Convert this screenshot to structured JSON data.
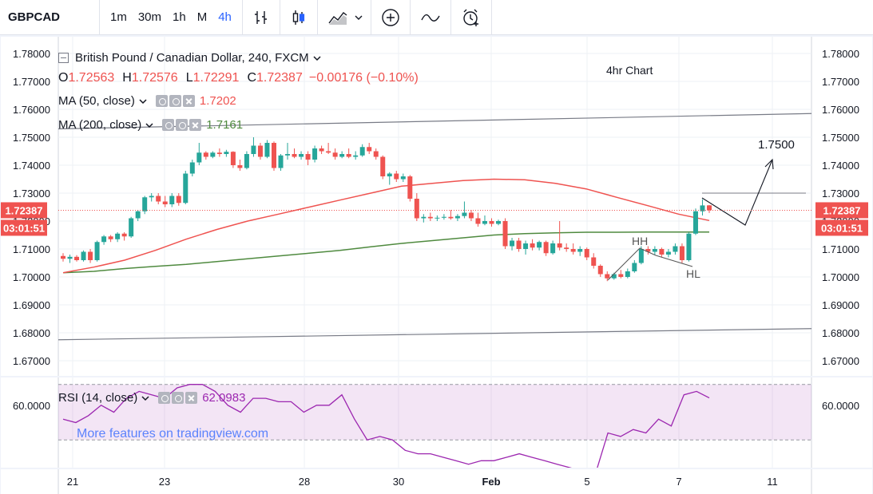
{
  "toolbar": {
    "symbol": "GBPCAD",
    "timeframes": [
      {
        "label": "1m",
        "active": false
      },
      {
        "label": "30m",
        "active": false
      },
      {
        "label": "1h",
        "active": false
      },
      {
        "label": "M",
        "active": false
      },
      {
        "label": "4h",
        "active": true
      }
    ]
  },
  "legend": {
    "title": "British Pound / Canadian Dollar, 240, FXCM",
    "ohlc": {
      "o_label": "O",
      "o": "1.72563",
      "h_label": "H",
      "h": "1.72576",
      "l_label": "L",
      "l": "1.72291",
      "c_label": "C",
      "c": "1.72387",
      "change": "−0.00176 (−0.10%)"
    },
    "ma50": {
      "label": "MA (50, close)",
      "value": "1.7202",
      "color": "#ef5350"
    },
    "ma200": {
      "label": "MA (200, close)",
      "value": "1.7161",
      "color": "#4f8a3f"
    },
    "rsi": {
      "label": "RSI (14, close)",
      "value": "62.0983",
      "color": "#9c27b0"
    }
  },
  "annotations": {
    "chart_note": "4hr Chart",
    "target": "1.7500",
    "hh": "HH",
    "hl": "HL",
    "watermark": "More features on tradingview.com"
  },
  "price_axis": {
    "ticks": [
      "1.78000",
      "1.77000",
      "1.76000",
      "1.75000",
      "1.74000",
      "1.73000",
      "1.72000",
      "1.71000",
      "1.70000",
      "1.69000",
      "1.68000",
      "1.67000"
    ],
    "last_price": "1.72387",
    "countdown": "03:01:51"
  },
  "rsi_axis": {
    "ticks": [
      "60.0000"
    ]
  },
  "time_axis": {
    "ticks": [
      "21",
      "23",
      "28",
      "30",
      "Feb",
      "5",
      "7",
      "11"
    ]
  },
  "chart_data": {
    "type": "candlestick",
    "symbol": "GBPCAD",
    "interval": "240",
    "ylim": [
      1.665,
      1.783
    ],
    "up_color": "#26a69a",
    "down_color": "#ef5350",
    "candles": [
      [
        1.7075,
        1.7085,
        1.7055,
        1.7065
      ],
      [
        1.7065,
        1.708,
        1.705,
        1.7072
      ],
      [
        1.7072,
        1.7078,
        1.7055,
        1.706
      ],
      [
        1.706,
        1.7095,
        1.7055,
        1.709
      ],
      [
        1.709,
        1.71,
        1.705,
        1.706
      ],
      [
        1.706,
        1.713,
        1.7055,
        1.7125
      ],
      [
        1.7125,
        1.715,
        1.7115,
        1.7145
      ],
      [
        1.7145,
        1.715,
        1.7125,
        1.7135
      ],
      [
        1.7135,
        1.716,
        1.7125,
        1.7155
      ],
      [
        1.7155,
        1.716,
        1.713,
        1.7145
      ],
      [
        1.7145,
        1.7215,
        1.714,
        1.721
      ],
      [
        1.721,
        1.724,
        1.72,
        1.7235
      ],
      [
        1.7235,
        1.729,
        1.7225,
        1.7285
      ],
      [
        1.7285,
        1.73,
        1.727,
        1.729
      ],
      [
        1.729,
        1.73,
        1.726,
        1.727
      ],
      [
        1.727,
        1.729,
        1.725,
        1.726
      ],
      [
        1.726,
        1.73,
        1.725,
        1.729
      ],
      [
        1.729,
        1.73,
        1.7255,
        1.7265
      ],
      [
        1.7265,
        1.738,
        1.726,
        1.737
      ],
      [
        1.737,
        1.742,
        1.736,
        1.741
      ],
      [
        1.741,
        1.748,
        1.74,
        1.7445
      ],
      [
        1.7445,
        1.745,
        1.742,
        1.743
      ],
      [
        1.743,
        1.745,
        1.7425,
        1.7445
      ],
      [
        1.7445,
        1.746,
        1.743,
        1.744
      ],
      [
        1.744,
        1.7455,
        1.743,
        1.7448
      ],
      [
        1.7448,
        1.745,
        1.739,
        1.74
      ],
      [
        1.74,
        1.742,
        1.738,
        1.739
      ],
      [
        1.739,
        1.745,
        1.7385,
        1.744
      ],
      [
        1.744,
        1.75,
        1.743,
        1.747
      ],
      [
        1.747,
        1.748,
        1.742,
        1.743
      ],
      [
        1.743,
        1.749,
        1.7425,
        1.748
      ],
      [
        1.748,
        1.7485,
        1.738,
        1.739
      ],
      [
        1.739,
        1.744,
        1.738,
        1.7435
      ],
      [
        1.7435,
        1.748,
        1.742,
        1.744
      ],
      [
        1.744,
        1.746,
        1.7425,
        1.743
      ],
      [
        1.743,
        1.745,
        1.742,
        1.744
      ],
      [
        1.744,
        1.745,
        1.74,
        1.742
      ],
      [
        1.742,
        1.747,
        1.741,
        1.746
      ],
      [
        1.746,
        1.747,
        1.744,
        1.745
      ],
      [
        1.745,
        1.748,
        1.744,
        1.7445
      ],
      [
        1.7445,
        1.746,
        1.742,
        1.743
      ],
      [
        1.743,
        1.745,
        1.7425,
        1.744
      ],
      [
        1.744,
        1.746,
        1.7425,
        1.743
      ],
      [
        1.743,
        1.745,
        1.742,
        1.7435
      ],
      [
        1.7435,
        1.7475,
        1.743,
        1.7465
      ],
      [
        1.7465,
        1.748,
        1.744,
        1.745
      ],
      [
        1.745,
        1.746,
        1.742,
        1.743
      ],
      [
        1.743,
        1.7435,
        1.735,
        1.736
      ],
      [
        1.736,
        1.7375,
        1.733,
        1.737
      ],
      [
        1.737,
        1.738,
        1.734,
        1.735
      ],
      [
        1.735,
        1.737,
        1.734,
        1.736
      ],
      [
        1.736,
        1.7365,
        1.727,
        1.728
      ],
      [
        1.728,
        1.73,
        1.72,
        1.721
      ],
      [
        1.721,
        1.7225,
        1.7195,
        1.7215
      ],
      [
        1.7215,
        1.723,
        1.72,
        1.721
      ],
      [
        1.721,
        1.722,
        1.72,
        1.7212
      ],
      [
        1.7212,
        1.7225,
        1.7205,
        1.7215
      ],
      [
        1.7215,
        1.724,
        1.7205,
        1.721
      ],
      [
        1.721,
        1.7225,
        1.72,
        1.7218
      ],
      [
        1.7218,
        1.727,
        1.721,
        1.723
      ],
      [
        1.723,
        1.724,
        1.72,
        1.721
      ],
      [
        1.721,
        1.723,
        1.718,
        1.719
      ],
      [
        1.719,
        1.722,
        1.7185,
        1.72
      ],
      [
        1.72,
        1.721,
        1.718,
        1.719
      ],
      [
        1.719,
        1.7205,
        1.7185,
        1.72
      ],
      [
        1.72,
        1.721,
        1.71,
        1.711
      ],
      [
        1.711,
        1.714,
        1.7095,
        1.713
      ],
      [
        1.713,
        1.714,
        1.709,
        1.71
      ],
      [
        1.71,
        1.713,
        1.708,
        1.712
      ],
      [
        1.712,
        1.7135,
        1.7095,
        1.7105
      ],
      [
        1.7105,
        1.713,
        1.7095,
        1.7125
      ],
      [
        1.7125,
        1.713,
        1.7075,
        1.7085
      ],
      [
        1.7085,
        1.713,
        1.708,
        1.712
      ],
      [
        1.712,
        1.72,
        1.7095,
        1.7105
      ],
      [
        1.7105,
        1.712,
        1.709,
        1.71
      ],
      [
        1.71,
        1.712,
        1.708,
        1.709
      ],
      [
        1.709,
        1.711,
        1.7075,
        1.71
      ],
      [
        1.71,
        1.7105,
        1.706,
        1.707
      ],
      [
        1.707,
        1.7085,
        1.703,
        1.704
      ],
      [
        1.704,
        1.7045,
        1.7,
        1.701
      ],
      [
        1.701,
        1.702,
        1.6985,
        1.6995
      ],
      [
        1.6995,
        1.7015,
        1.699,
        1.701
      ],
      [
        1.701,
        1.7025,
        1.6995,
        1.7
      ],
      [
        1.7,
        1.703,
        1.6995,
        1.702
      ],
      [
        1.702,
        1.706,
        1.7015,
        1.705
      ],
      [
        1.705,
        1.711,
        1.7045,
        1.71
      ],
      [
        1.71,
        1.711,
        1.708,
        1.709
      ],
      [
        1.709,
        1.711,
        1.708,
        1.71
      ],
      [
        1.71,
        1.7105,
        1.707,
        1.708
      ],
      [
        1.708,
        1.71,
        1.707,
        1.709
      ],
      [
        1.709,
        1.712,
        1.708,
        1.711
      ],
      [
        1.711,
        1.712,
        1.705,
        1.706
      ],
      [
        1.706,
        1.716,
        1.7055,
        1.7155
      ],
      [
        1.7155,
        1.7245,
        1.715,
        1.7235
      ],
      [
        1.7235,
        1.7278,
        1.722,
        1.7256
      ],
      [
        1.72563,
        1.72576,
        1.72291,
        1.72387
      ]
    ],
    "ma50": [
      1.7015,
      1.7035,
      1.706,
      1.7095,
      1.7135,
      1.717,
      1.72,
      1.7225,
      1.725,
      1.7275,
      1.73,
      1.7325,
      1.7335,
      1.7345,
      1.735,
      1.7348,
      1.7335,
      1.7315,
      1.7285,
      1.7255,
      1.7225,
      1.7202
    ],
    "ma200": [
      1.7015,
      1.702,
      1.703,
      1.7038,
      1.7045,
      1.7055,
      1.7065,
      1.7075,
      1.7085,
      1.7095,
      1.7108,
      1.712,
      1.713,
      1.714,
      1.715,
      1.7155,
      1.7158,
      1.716,
      1.716,
      1.7161,
      1.7161,
      1.7161
    ],
    "rsi": {
      "visible_range": [
        42,
        68
      ],
      "band": [
        50,
        66
      ],
      "values": [
        56,
        55,
        57,
        60,
        58,
        62,
        64,
        63,
        62,
        65,
        66,
        66,
        64,
        60,
        58,
        62,
        62,
        61,
        61,
        58,
        60,
        60,
        63,
        56,
        50,
        51,
        50,
        47,
        46,
        46,
        45,
        44,
        43,
        44,
        44,
        45,
        46,
        45,
        44,
        43,
        42,
        41,
        40,
        52,
        51,
        53,
        52,
        56,
        54,
        63,
        64,
        62.1
      ]
    },
    "trendlines": [
      {
        "name": "upper-channel",
        "from": [
          0,
          1.753
        ],
        "to": [
          1,
          1.7585
        ]
      },
      {
        "name": "lower-channel",
        "from": [
          0,
          1.6775
        ],
        "to": [
          1,
          1.6815
        ]
      },
      {
        "name": "resistance",
        "value": 1.73
      }
    ]
  }
}
